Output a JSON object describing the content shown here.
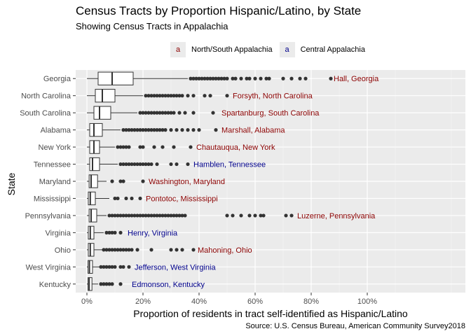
{
  "chart_data": {
    "type": "boxplot",
    "title": "Census Tracts by Proportion Hispanic/Latino, by State",
    "subtitle": "Showing Census Tracts in Appalachia",
    "xlabel": "Proportion of residents in tract self-identified as Hispanic/Latino",
    "ylabel": "State",
    "caption": "Source: U.S. Census Bureau, American Community Survey2018",
    "xlim": [
      -0.04,
      1.35
    ],
    "x_ticks": [
      0,
      0.2,
      0.4,
      0.6,
      0.8,
      1.0
    ],
    "x_tick_labels": [
      "0%",
      "20%",
      "40%",
      "60%",
      "80%",
      "100%"
    ],
    "grid": true,
    "legend": {
      "placement": "top",
      "key_glyph": "a",
      "items": [
        {
          "label": "North/South Appalachia",
          "color": "#8b0000"
        },
        {
          "label": "Central Appalachia",
          "color": "#00008b"
        }
      ]
    },
    "colors": {
      "north_south": "#8b0000",
      "central": "#00008b",
      "panel": "#ebebeb",
      "points": "#333333"
    },
    "states": [
      {
        "name": "Georgia",
        "q1": 0.04,
        "median": 0.09,
        "q3": 0.165,
        "whisker_low": 0.0,
        "whisker_high": 0.36,
        "outliers": [
          0.37,
          0.38,
          0.39,
          0.4,
          0.41,
          0.42,
          0.43,
          0.44,
          0.45,
          0.46,
          0.47,
          0.48,
          0.49,
          0.5,
          0.52,
          0.53,
          0.55,
          0.57,
          0.58,
          0.6,
          0.62,
          0.64,
          0.65,
          0.7,
          0.73,
          0.76,
          0.78,
          0.87
        ],
        "label": "Hall, Georgia",
        "label_x": 0.88,
        "region": "north_south"
      },
      {
        "name": "North Carolina",
        "q1": 0.03,
        "median": 0.055,
        "q3": 0.1,
        "whisker_low": 0.0,
        "whisker_high": 0.2,
        "outliers": [
          0.21,
          0.22,
          0.23,
          0.24,
          0.25,
          0.26,
          0.27,
          0.28,
          0.29,
          0.3,
          0.31,
          0.32,
          0.33,
          0.34,
          0.36,
          0.38,
          0.42,
          0.44,
          0.5
        ],
        "label": "Forsyth, North Carolina",
        "label_x": 0.52,
        "region": "north_south"
      },
      {
        "name": "South Carolina",
        "q1": 0.025,
        "median": 0.045,
        "q3": 0.085,
        "whisker_low": 0.0,
        "whisker_high": 0.18,
        "outliers": [
          0.19,
          0.2,
          0.21,
          0.22,
          0.23,
          0.24,
          0.25,
          0.26,
          0.27,
          0.28,
          0.29,
          0.3,
          0.31,
          0.33,
          0.35,
          0.38,
          0.45
        ],
        "label": "Spartanburg, South Carolina",
        "label_x": 0.48,
        "region": "north_south"
      },
      {
        "name": "Alabama",
        "q1": 0.01,
        "median": 0.025,
        "q3": 0.055,
        "whisker_low": 0.0,
        "whisker_high": 0.12,
        "outliers": [
          0.13,
          0.14,
          0.15,
          0.16,
          0.17,
          0.18,
          0.19,
          0.2,
          0.21,
          0.22,
          0.23,
          0.24,
          0.25,
          0.26,
          0.27,
          0.28,
          0.3,
          0.32,
          0.34,
          0.36,
          0.38,
          0.4,
          0.46
        ],
        "label": "Marshall, Alabama",
        "label_x": 0.48,
        "region": "north_south"
      },
      {
        "name": "New York",
        "q1": 0.01,
        "median": 0.025,
        "q3": 0.045,
        "whisker_low": 0.0,
        "whisker_high": 0.1,
        "outliers": [
          0.11,
          0.12,
          0.13,
          0.14,
          0.15,
          0.19,
          0.2,
          0.24,
          0.27,
          0.31,
          0.37
        ],
        "label": "Chautauqua, New York",
        "label_x": 0.39,
        "region": "north_south"
      },
      {
        "name": "Tennessee",
        "q1": 0.01,
        "median": 0.02,
        "q3": 0.045,
        "whisker_low": 0.0,
        "whisker_high": 0.11,
        "outliers": [
          0.12,
          0.13,
          0.14,
          0.15,
          0.16,
          0.17,
          0.18,
          0.19,
          0.2,
          0.21,
          0.22,
          0.23,
          0.25,
          0.3,
          0.32,
          0.36
        ],
        "label": "Hamblen, Tennessee",
        "label_x": 0.38,
        "region": "central"
      },
      {
        "name": "Maryland",
        "q1": 0.008,
        "median": 0.015,
        "q3": 0.038,
        "whisker_low": 0.0,
        "whisker_high": 0.07,
        "outliers": [
          0.09,
          0.12,
          0.13,
          0.2
        ],
        "label": "Washington, Maryland",
        "label_x": 0.22,
        "region": "north_south"
      },
      {
        "name": "Mississippi",
        "q1": 0.005,
        "median": 0.012,
        "q3": 0.03,
        "whisker_low": 0.0,
        "whisker_high": 0.08,
        "outliers": [
          0.1,
          0.11,
          0.14,
          0.16,
          0.19
        ],
        "label": "Pontotoc, Mississippi",
        "label_x": 0.21,
        "region": "north_south"
      },
      {
        "name": "Pennsylvania",
        "q1": 0.008,
        "median": 0.015,
        "q3": 0.035,
        "whisker_low": 0.0,
        "whisker_high": 0.07,
        "outliers": [
          0.08,
          0.09,
          0.1,
          0.11,
          0.12,
          0.13,
          0.14,
          0.15,
          0.16,
          0.17,
          0.18,
          0.19,
          0.2,
          0.21,
          0.22,
          0.23,
          0.24,
          0.25,
          0.26,
          0.27,
          0.28,
          0.29,
          0.3,
          0.31,
          0.32,
          0.33,
          0.34,
          0.35,
          0.5,
          0.52,
          0.55,
          0.58,
          0.6,
          0.62,
          0.63,
          0.71,
          0.73
        ],
        "label": "Luzerne, Pennsylvania",
        "label_x": 0.75,
        "region": "north_south"
      },
      {
        "name": "Virginia",
        "q1": 0.005,
        "median": 0.012,
        "q3": 0.025,
        "whisker_low": 0.0,
        "whisker_high": 0.06,
        "outliers": [
          0.07,
          0.08,
          0.09,
          0.1,
          0.12
        ],
        "label": "Henry, Virginia",
        "label_x": 0.145,
        "region": "central"
      },
      {
        "name": "Ohio",
        "q1": 0.005,
        "median": 0.012,
        "q3": 0.025,
        "whisker_low": 0.0,
        "whisker_high": 0.055,
        "outliers": [
          0.06,
          0.07,
          0.08,
          0.09,
          0.1,
          0.11,
          0.12,
          0.13,
          0.14,
          0.15,
          0.16,
          0.18,
          0.23,
          0.3,
          0.32,
          0.34,
          0.38
        ],
        "label": "Mahoning, Ohio",
        "label_x": 0.395,
        "region": "north_south"
      },
      {
        "name": "West Virginia",
        "q1": 0.004,
        "median": 0.009,
        "q3": 0.02,
        "whisker_low": 0.0,
        "whisker_high": 0.045,
        "outliers": [
          0.05,
          0.06,
          0.07,
          0.08,
          0.09,
          0.1,
          0.12,
          0.13,
          0.15
        ],
        "label": "Jefferson, West Virginia",
        "label_x": 0.17,
        "region": "central"
      },
      {
        "name": "Kentucky",
        "q1": 0.004,
        "median": 0.008,
        "q3": 0.018,
        "whisker_low": 0.0,
        "whisker_high": 0.04,
        "outliers": [
          0.05,
          0.06,
          0.07,
          0.08,
          0.09,
          0.12
        ],
        "label": "Edmonson, Kentucky",
        "label_x": 0.16,
        "region": "central"
      }
    ]
  }
}
